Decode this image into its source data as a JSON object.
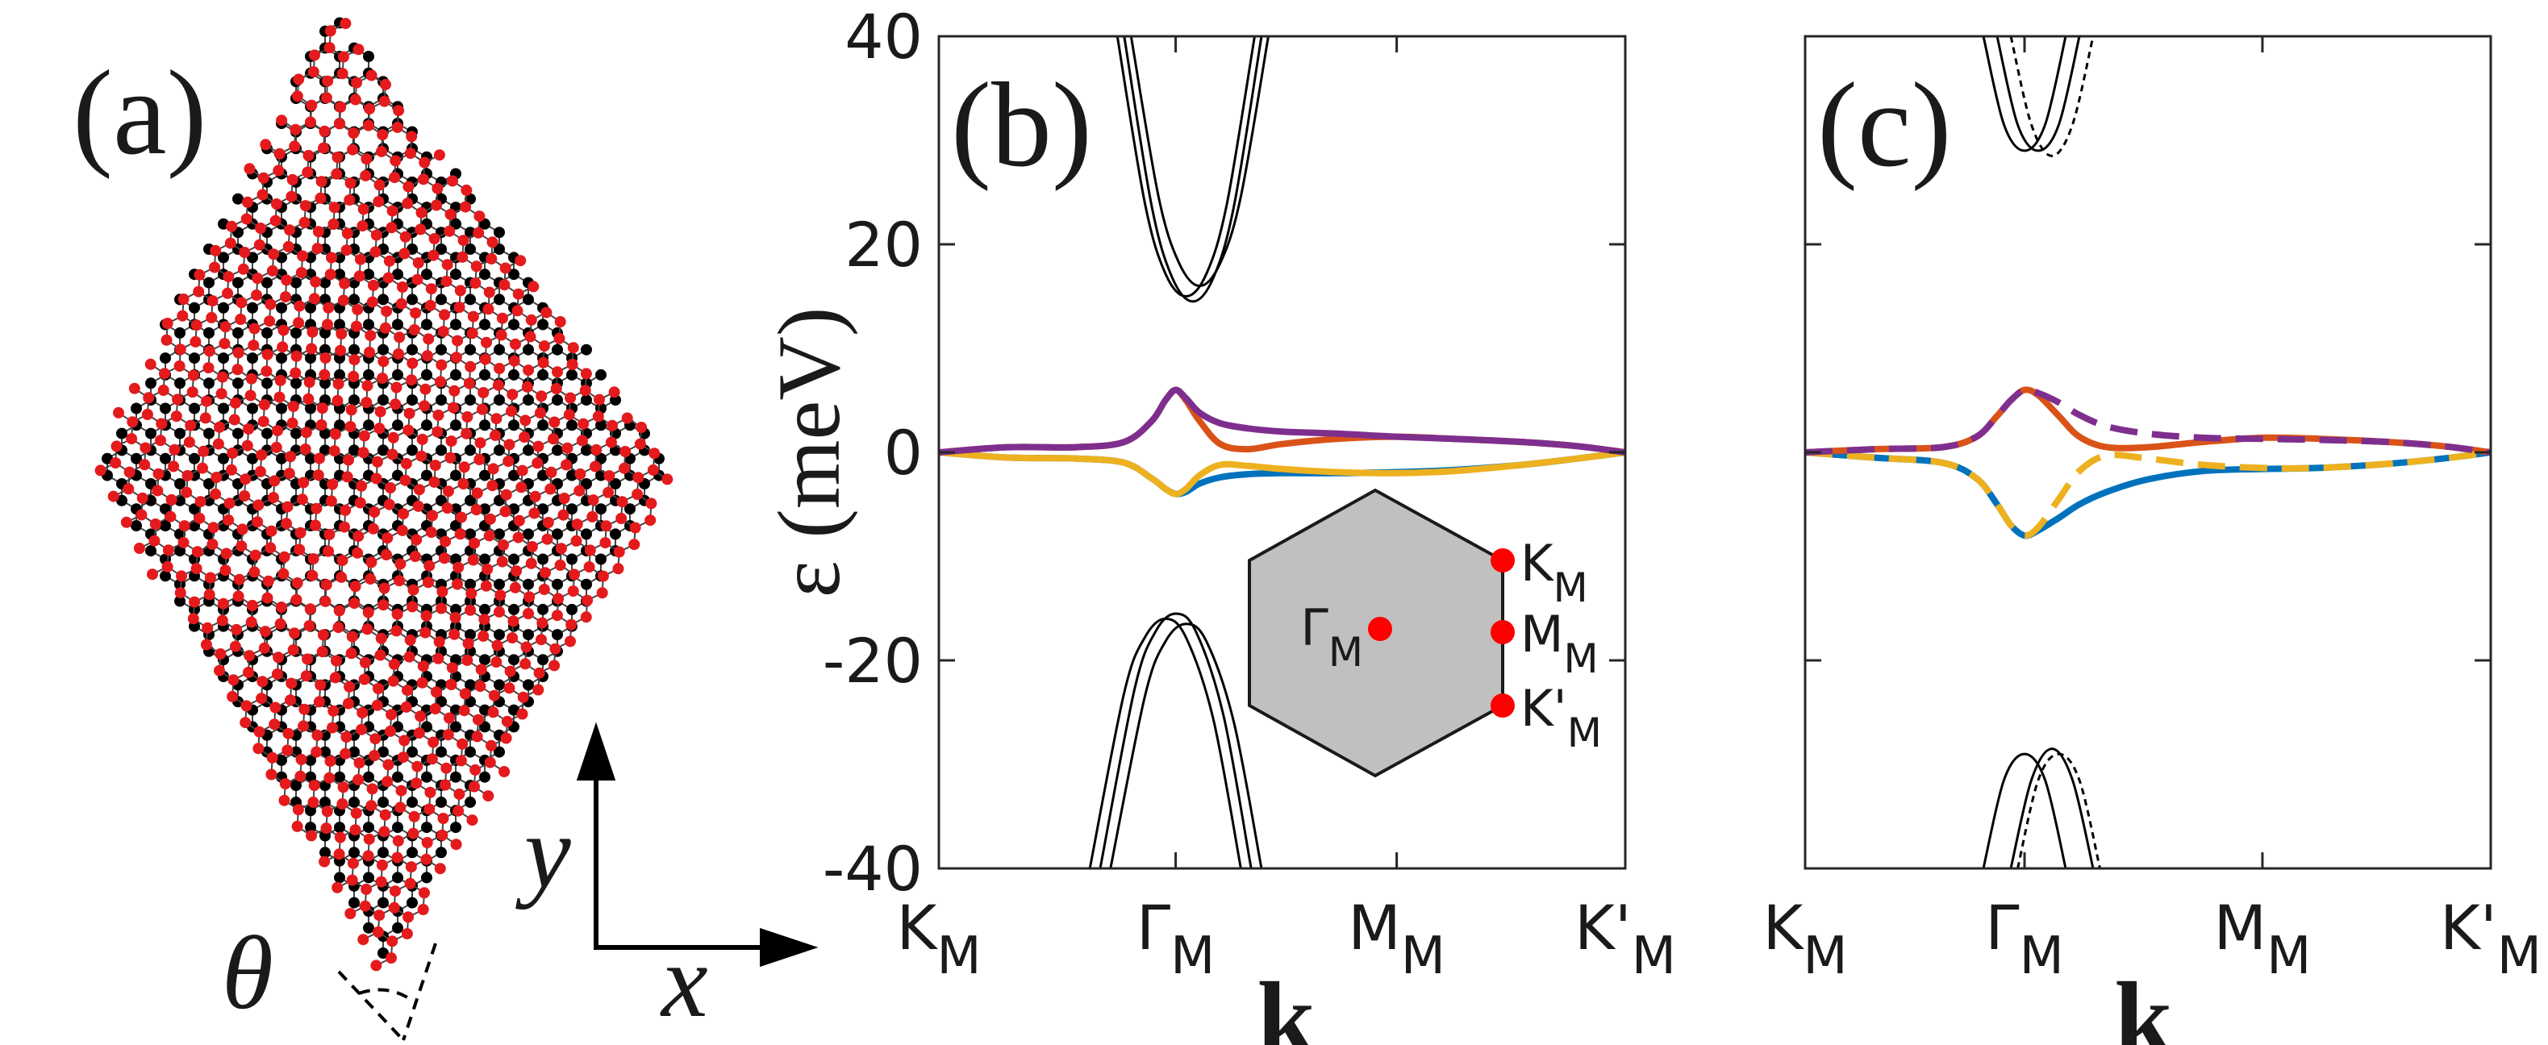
{
  "panel_a": {
    "label": "(a)",
    "x_axis": "x",
    "y_axis": "y",
    "angle": "θ"
  },
  "chart_data": [
    {
      "type": "line",
      "panel_label": "(b)",
      "ylabel": "ε (meV)",
      "xlabel": "k",
      "xlim": [
        0,
        1
      ],
      "ylim": [
        -40,
        40
      ],
      "yticks": [
        -40,
        -20,
        0,
        20,
        40
      ],
      "show_ytick_labels": true,
      "xticks": [
        {
          "value": 0,
          "label": "K",
          "sub": "M"
        },
        {
          "value": 0.345,
          "label": "Γ",
          "sub": "M"
        },
        {
          "value": 0.667,
          "label": "M",
          "sub": "M"
        },
        {
          "value": 1,
          "label": "K'",
          "sub": "M"
        }
      ],
      "x": [
        0,
        0.1,
        0.2,
        0.27,
        0.31,
        0.33,
        0.345,
        0.36,
        0.38,
        0.41,
        0.45,
        0.5,
        0.58,
        0.667,
        0.75,
        0.85,
        0.93,
        1
      ],
      "series": [
        {
          "color": "#000000",
          "dashed": false,
          "x": [
            0.26,
            0.3,
            0.33,
            0.36,
            0.39,
            0.42,
            0.46
          ],
          "values": [
            40,
            24,
            17.2,
            15,
            17.2,
            24,
            40
          ]
        },
        {
          "color": "#000000",
          "dashed": false,
          "x": [
            0.27,
            0.31,
            0.34,
            0.37,
            0.4,
            0.43,
            0.47
          ],
          "values": [
            40,
            23.7,
            16.8,
            14.5,
            16.8,
            23.7,
            40
          ]
        },
        {
          "color": "#000000",
          "dashed": false,
          "x": [
            0.28,
            0.32,
            0.35,
            0.38,
            0.41,
            0.44,
            0.48
          ],
          "values": [
            40,
            24.6,
            18.2,
            16,
            18.2,
            24.6,
            40
          ]
        },
        {
          "color": "#000000",
          "dashed": false,
          "x": [
            0.22,
            0.27,
            0.3,
            0.33,
            0.36,
            0.4,
            0.44
          ],
          "values": [
            -40,
            -23.1,
            -17.8,
            -16,
            -17.8,
            -25.7,
            -40
          ]
        },
        {
          "color": "#000000",
          "dashed": false,
          "x": [
            0.235,
            0.285,
            0.315,
            0.345,
            0.375,
            0.415,
            0.455
          ],
          "values": [
            -40,
            -22.8,
            -17.3,
            -15.5,
            -17.3,
            -25.4,
            -40
          ]
        },
        {
          "color": "#000000",
          "dashed": false,
          "x": [
            0.25,
            0.3,
            0.33,
            0.36,
            0.39,
            0.43,
            0.47
          ],
          "values": [
            -40,
            -23.5,
            -18.2,
            -16.5,
            -18.2,
            -26,
            -40
          ]
        },
        {
          "color": "#0072bd",
          "dashed": false,
          "values": [
            0,
            -0.5,
            -0.6,
            -1,
            -2.5,
            -3.5,
            -4,
            -3.8,
            -3,
            -2.4,
            -2.1,
            -2,
            -2,
            -1.9,
            -1.7,
            -1.2,
            -0.6,
            0
          ]
        },
        {
          "color": "#edb120",
          "dashed": false,
          "values": [
            0,
            -0.5,
            -0.6,
            -1,
            -2.5,
            -3.5,
            -4,
            -3.5,
            -2.2,
            -1.2,
            -1.3,
            -1.6,
            -1.9,
            -2,
            -1.8,
            -1.2,
            -0.6,
            0
          ]
        },
        {
          "color": "#d95319",
          "dashed": false,
          "values": [
            0,
            0.5,
            0.5,
            1,
            3,
            5,
            6,
            5,
            3,
            0.8,
            0.3,
            0.8,
            1.3,
            1.5,
            1.3,
            1,
            0.6,
            0
          ]
        },
        {
          "color": "#7e2f8e",
          "dashed": false,
          "values": [
            0,
            0.5,
            0.5,
            1,
            3,
            5,
            6,
            5.2,
            3.8,
            2.8,
            2.3,
            2,
            1.8,
            1.5,
            1.3,
            1,
            0.6,
            0
          ]
        }
      ],
      "inset": [
        {
          "label": "Γ",
          "sub": "M"
        },
        {
          "label": "K",
          "sub": "M"
        },
        {
          "label": "M",
          "sub": "M"
        },
        {
          "label": "K'",
          "sub": "M"
        }
      ]
    },
    {
      "type": "line",
      "panel_label": "(c)",
      "xlabel": "k",
      "xlim": [
        0,
        1
      ],
      "ylim": [
        -40,
        40
      ],
      "yticks": [
        -40,
        -20,
        0,
        20,
        40
      ],
      "show_ytick_labels": false,
      "xticks": [
        {
          "value": 0,
          "label": "K",
          "sub": "M"
        },
        {
          "value": 0.32,
          "label": "Γ",
          "sub": "M"
        },
        {
          "value": 0.667,
          "label": "M",
          "sub": "M"
        },
        {
          "value": 1,
          "label": "K'",
          "sub": "M"
        }
      ],
      "x": [
        0,
        0.1,
        0.2,
        0.25,
        0.28,
        0.3,
        0.32,
        0.34,
        0.37,
        0.4,
        0.44,
        0.5,
        0.58,
        0.667,
        0.75,
        0.85,
        0.93,
        1
      ],
      "series": [
        {
          "color": "#000000",
          "dashed": false,
          "x": [
            0.26,
            0.29,
            0.32,
            0.35,
            0.38
          ],
          "values": [
            40,
            31.5,
            29,
            31.5,
            40
          ]
        },
        {
          "color": "#000000",
          "dashed": false,
          "x": [
            0.28,
            0.31,
            0.34,
            0.37,
            0.4
          ],
          "values": [
            40,
            31.5,
            29,
            31.5,
            40
          ]
        },
        {
          "color": "#000000",
          "dashed": true,
          "x": [
            0.3,
            0.33,
            0.36,
            0.39,
            0.42
          ],
          "values": [
            40,
            31.5,
            28.5,
            31.5,
            40
          ]
        },
        {
          "color": "#000000",
          "dashed": false,
          "x": [
            0.26,
            0.29,
            0.32,
            0.35,
            0.38
          ],
          "values": [
            -40,
            -31.5,
            -29,
            -31.5,
            -40
          ]
        },
        {
          "color": "#000000",
          "dashed": false,
          "x": [
            0.3,
            0.33,
            0.36,
            0.39,
            0.42
          ],
          "values": [
            -40,
            -31.5,
            -28.5,
            -31.5,
            -40
          ]
        },
        {
          "color": "#000000",
          "dashed": true,
          "x": [
            0.31,
            0.34,
            0.37,
            0.4,
            0.43
          ],
          "values": [
            -40,
            -31.5,
            -29,
            -31.5,
            -40
          ]
        },
        {
          "color": "#0072bd",
          "dashed": false,
          "values": [
            0,
            -0.5,
            -1,
            -2.5,
            -5,
            -7,
            -8,
            -7.5,
            -6.3,
            -5,
            -3.8,
            -2.6,
            -1.8,
            -1.6,
            -1.5,
            -1.1,
            -0.6,
            0
          ]
        },
        {
          "color": "#d95319",
          "dashed": false,
          "values": [
            0,
            0.3,
            0.5,
            1.5,
            3.5,
            5,
            6,
            5.5,
            3.5,
            1.5,
            0.5,
            0.5,
            1,
            1.4,
            1.3,
            1,
            0.6,
            0
          ]
        },
        {
          "color": "#edb120",
          "dashed": true,
          "values": [
            0,
            -0.5,
            -1,
            -2.5,
            -5,
            -7,
            -8,
            -7.2,
            -4.5,
            -1.8,
            -0.3,
            -0.6,
            -1.2,
            -1.5,
            -1.5,
            -1.1,
            -0.6,
            0
          ]
        },
        {
          "color": "#7e2f8e",
          "dashed": true,
          "values": [
            0,
            0.3,
            0.5,
            1.5,
            3.5,
            5,
            6,
            5.7,
            4.8,
            3.6,
            2.5,
            1.8,
            1.4,
            1.3,
            1.2,
            1,
            0.6,
            0
          ]
        }
      ]
    }
  ]
}
